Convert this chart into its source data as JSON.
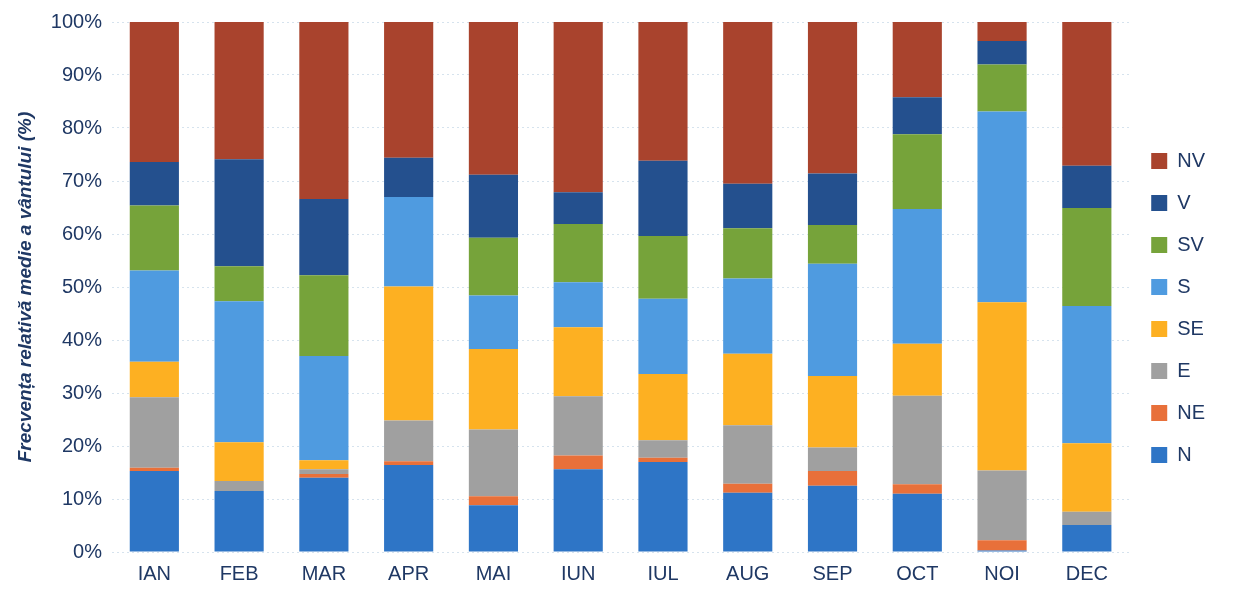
{
  "chart_data": {
    "type": "bar",
    "stacked": true,
    "ylabel": "Frecvența relativă medie a vântului (%)",
    "categories": [
      "IAN",
      "FEB",
      "MAR",
      "APR",
      "MAI",
      "IUN",
      "IUL",
      "AUG",
      "SEP",
      "OCT",
      "NOI",
      "DEC"
    ],
    "series": [
      {
        "name": "N",
        "color": "#2e75c6",
        "values": [
          15.3,
          11.5,
          14.0,
          16.4,
          8.8,
          15.6,
          17.0,
          11.2,
          12.5,
          11.0,
          0.3,
          5.1
        ]
      },
      {
        "name": "NE",
        "color": "#e8703a",
        "values": [
          0.6,
          0,
          0.7,
          0.7,
          1.7,
          2.6,
          0.8,
          1.7,
          2.8,
          1.8,
          1.9,
          0
        ]
      },
      {
        "name": "E",
        "color": "#a0a0a0",
        "values": [
          13.3,
          1.9,
          0.9,
          7.7,
          12.6,
          11.2,
          3.3,
          11.0,
          4.4,
          16.7,
          13.2,
          2.5
        ]
      },
      {
        "name": "SE",
        "color": "#fdb022",
        "values": [
          6.7,
          7.3,
          1.7,
          25.3,
          15.2,
          13.0,
          12.5,
          13.5,
          13.5,
          9.8,
          31.7,
          12.9
        ]
      },
      {
        "name": "S",
        "color": "#4f9be0",
        "values": [
          17.2,
          26.6,
          19.7,
          16.9,
          10.1,
          8.5,
          14.2,
          14.2,
          21.2,
          25.4,
          36.0,
          25.9
        ]
      },
      {
        "name": "SV",
        "color": "#76a33a",
        "values": [
          12.3,
          6.6,
          15.2,
          0,
          10.9,
          11.0,
          11.8,
          9.5,
          7.3,
          14.1,
          8.9,
          18.5
        ]
      },
      {
        "name": "V",
        "color": "#24508e",
        "values": [
          8.2,
          20.2,
          14.4,
          7.4,
          11.9,
          6.0,
          14.2,
          8.4,
          9.7,
          7.0,
          4.4,
          8.0
        ]
      },
      {
        "name": "NV",
        "color": "#a9432d",
        "values": [
          26.4,
          25.9,
          33.4,
          25.6,
          28.8,
          32.1,
          26.2,
          30.5,
          28.6,
          14.2,
          3.6,
          27.1
        ]
      }
    ],
    "ylim": [
      0,
      100
    ],
    "yticks": [
      {
        "value": 0,
        "label": "0%"
      },
      {
        "value": 10,
        "label": "10%"
      },
      {
        "value": 20,
        "label": "20%"
      },
      {
        "value": 30,
        "label": "30%"
      },
      {
        "value": 40,
        "label": "40%"
      },
      {
        "value": 50,
        "label": "50%"
      },
      {
        "value": 60,
        "label": "60%"
      },
      {
        "value": 70,
        "label": "70%"
      },
      {
        "value": 80,
        "label": "80%"
      },
      {
        "value": 90,
        "label": "90%"
      },
      {
        "value": 100,
        "label": "100%"
      }
    ],
    "grid": "y",
    "legend": "right"
  }
}
